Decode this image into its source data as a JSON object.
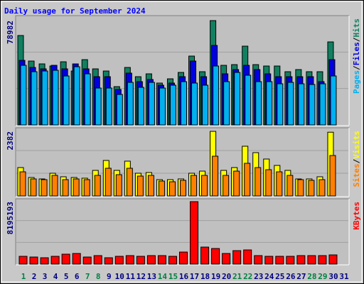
{
  "title": "Daily usage for September 2024",
  "categories": [
    "1",
    "2",
    "3",
    "4",
    "5",
    "6",
    "7",
    "8",
    "9",
    "10",
    "11",
    "12",
    "13",
    "14",
    "15",
    "16",
    "17",
    "18",
    "19",
    "20",
    "21",
    "22",
    "23",
    "24",
    "25",
    "26",
    "27",
    "28",
    "29",
    "30",
    "31"
  ],
  "category_colors": [
    "#008040",
    "#000080",
    "#000080",
    "#000080",
    "#000080",
    "#000080",
    "#008040",
    "#008040",
    "#000080",
    "#000080",
    "#000080",
    "#000080",
    "#000080",
    "#008040",
    "#008040",
    "#000080",
    "#000080",
    "#000080",
    "#000080",
    "#000080",
    "#008040",
    "#008040",
    "#000080",
    "#000080",
    "#000080",
    "#000080",
    "#000080",
    "#008040",
    "#008040",
    "#000080",
    "#000080"
  ],
  "legend_separator": "/",
  "chart_data": [
    {
      "type": "bar",
      "ylim": [
        0,
        78982
      ],
      "yticks": [
        78982
      ],
      "series": [
        {
          "name": "Hits",
          "color": "#108060",
          "values": [
            67700,
            48360,
            46210,
            44600,
            47820,
            40830,
            49430,
            42450,
            40830,
            29010,
            43520,
            36540,
            38690,
            31700,
            34920,
            39760,
            52120,
            40300,
            78982,
            45130,
            45670,
            59640,
            45670,
            44600,
            44600,
            40300,
            41910,
            40300,
            40300,
            62860,
            0
          ]
        },
        {
          "name": "Files",
          "color": "#0000e0",
          "values": [
            48890,
            43520,
            42450,
            45130,
            42450,
            46210,
            42450,
            36540,
            36540,
            26870,
            39220,
            32780,
            34390,
            30090,
            31700,
            36540,
            48360,
            36540,
            60180,
            38690,
            41910,
            45130,
            41910,
            38690,
            36540,
            36540,
            36540,
            36540,
            32780,
            49430,
            0
          ]
        },
        {
          "name": "Pages",
          "color": "#00b0f0",
          "values": [
            45130,
            40300,
            40830,
            41370,
            37070,
            44060,
            38690,
            27940,
            27940,
            23100,
            32240,
            28480,
            32240,
            27940,
            30090,
            32780,
            31700,
            30090,
            44600,
            32780,
            39760,
            37610,
            32780,
            32780,
            31160,
            32240,
            31160,
            30630,
            31160,
            37070,
            0
          ]
        }
      ]
    },
    {
      "type": "bar",
      "ylim": [
        0,
        2382
      ],
      "yticks": [
        2382
      ],
      "series": [
        {
          "name": "Visits",
          "color": "#ffff00",
          "values": [
            1047,
            681,
            628,
            838,
            707,
            681,
            655,
            943,
            1309,
            943,
            1283,
            838,
            864,
            602,
            602,
            628,
            838,
            916,
            2382,
            943,
            1047,
            1833,
            1597,
            1361,
            1126,
            943,
            628,
            628,
            707,
            2350,
            0
          ]
        },
        {
          "name": "Sites",
          "color": "#ff8000",
          "values": [
            890,
            628,
            602,
            759,
            602,
            628,
            602,
            759,
            1021,
            785,
            1021,
            733,
            759,
            550,
            524,
            576,
            759,
            759,
            1466,
            759,
            916,
            1204,
            1047,
            969,
            890,
            759,
            602,
            576,
            602,
            1492,
            0
          ]
        }
      ]
    },
    {
      "type": "bar",
      "ylim": [
        0,
        8195193
      ],
      "yticks": [
        8195193
      ],
      "series": [
        {
          "name": "KBytes",
          "color": "#ff0000",
          "values": [
            1024400,
            931300,
            838100,
            1024400,
            1303800,
            1396900,
            931300,
            1117500,
            838100,
            1024400,
            1117500,
            1024400,
            1117500,
            1117500,
            1024400,
            1583200,
            8195193,
            2235000,
            2048800,
            1396900,
            1769400,
            1862500,
            1117500,
            1024400,
            1024400,
            1024400,
            1117500,
            1117500,
            1117500,
            1210700,
            0
          ]
        }
      ]
    }
  ]
}
